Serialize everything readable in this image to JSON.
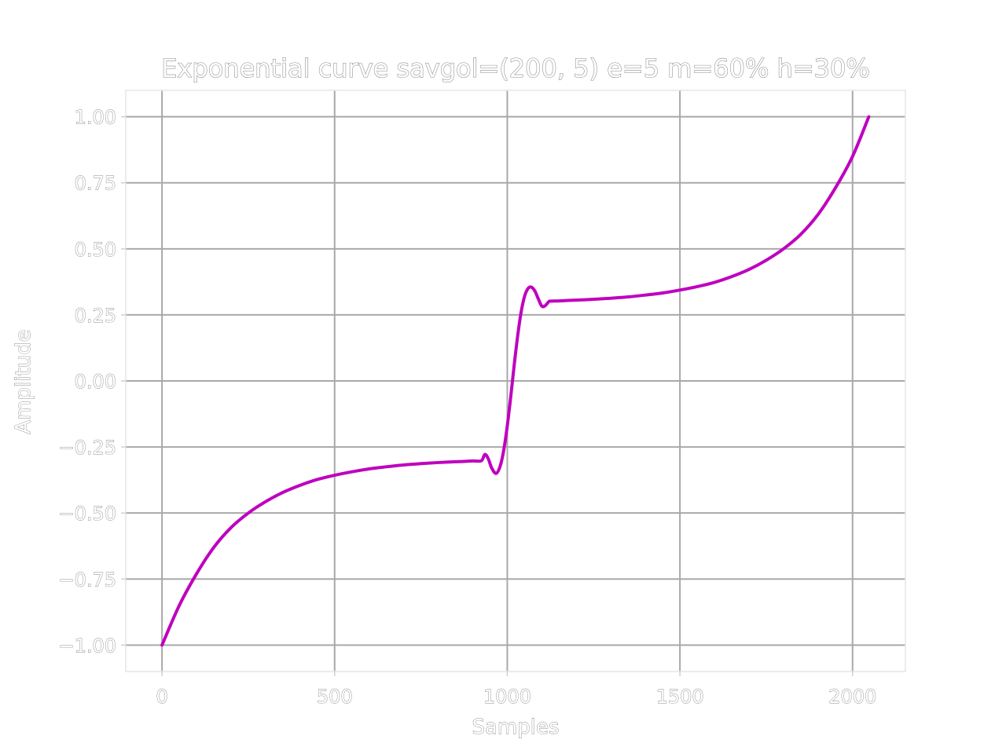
{
  "chart_data": {
    "type": "line",
    "title": "Exponential curve savgol=(200, 5) e=5 m=60% h=30%",
    "xlabel": "Samples",
    "ylabel": "Amplitude",
    "xlim": [
      -105,
      2153
    ],
    "ylim": [
      -1.1,
      1.1
    ],
    "xticks": [
      0,
      500,
      1000,
      1500,
      2000
    ],
    "xtick_labels": [
      "0",
      "500",
      "1000",
      "1500",
      "2000"
    ],
    "yticks": [
      -1.0,
      -0.75,
      -0.5,
      -0.25,
      0.0,
      0.25,
      0.5,
      0.75,
      1.0
    ],
    "ytick_labels": [
      "−1.00",
      "−0.75",
      "−0.50",
      "−0.25",
      "0.00",
      "0.25",
      "0.50",
      "0.75",
      "1.00"
    ],
    "grid": true,
    "series": [
      {
        "color": "#bf00bf",
        "x": [
          0,
          50,
          100,
          150,
          200,
          250,
          300,
          350,
          400,
          450,
          500,
          550,
          600,
          650,
          700,
          750,
          800,
          850,
          900,
          925,
          935,
          945,
          955,
          968,
          980,
          990,
          1000,
          1010,
          1020,
          1030,
          1040,
          1050,
          1060,
          1070,
          1080,
          1090,
          1100,
          1110,
          1120,
          1125,
          1150,
          1200,
          1250,
          1300,
          1350,
          1400,
          1450,
          1500,
          1550,
          1600,
          1650,
          1700,
          1750,
          1800,
          1850,
          1900,
          1950,
          2000,
          2047
        ],
        "y": [
          -1.0,
          -0.85,
          -0.73,
          -0.63,
          -0.555,
          -0.5,
          -0.457,
          -0.422,
          -0.395,
          -0.373,
          -0.357,
          -0.344,
          -0.333,
          -0.325,
          -0.318,
          -0.313,
          -0.309,
          -0.306,
          -0.303,
          -0.302,
          -0.278,
          -0.295,
          -0.33,
          -0.35,
          -0.32,
          -0.26,
          -0.17,
          -0.06,
          0.06,
          0.17,
          0.26,
          0.32,
          0.35,
          0.355,
          0.34,
          0.31,
          0.283,
          0.285,
          0.3,
          0.302,
          0.303,
          0.306,
          0.309,
          0.313,
          0.318,
          0.325,
          0.333,
          0.344,
          0.357,
          0.373,
          0.395,
          0.422,
          0.457,
          0.5,
          0.555,
          0.63,
          0.73,
          0.85,
          1.0
        ]
      }
    ]
  }
}
